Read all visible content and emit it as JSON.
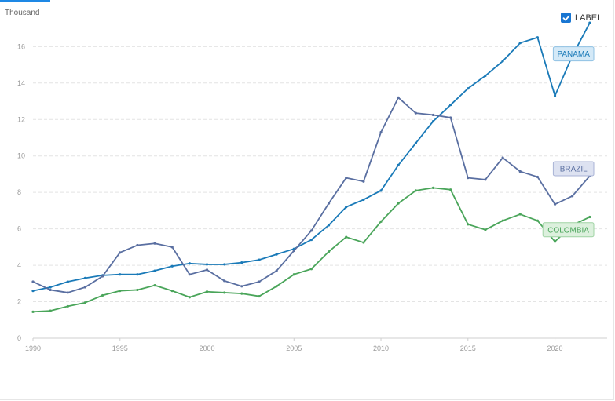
{
  "header": {
    "unit_label": "Thousand",
    "label_toggle": "LABEL",
    "label_checked": true
  },
  "chart_data": {
    "type": "line",
    "x": [
      1990,
      1991,
      1992,
      1993,
      1994,
      1995,
      1996,
      1997,
      1998,
      1999,
      2000,
      2001,
      2002,
      2003,
      2004,
      2005,
      2006,
      2007,
      2008,
      2009,
      2010,
      2011,
      2012,
      2013,
      2014,
      2015,
      2016,
      2017,
      2018,
      2019,
      2020,
      2021,
      2022
    ],
    "xticks": [
      1990,
      1995,
      2000,
      2005,
      2010,
      2015,
      2020
    ],
    "xlim": [
      1990,
      2023
    ],
    "yticks": [
      0,
      2,
      4,
      6,
      8,
      10,
      12,
      14,
      16
    ],
    "ylim": [
      0,
      17.5
    ],
    "ylabel": "Thousand",
    "grid": true,
    "series": [
      {
        "name": "PANAMA",
        "color": "#1a7ab8",
        "label_bg": "#d4e9f7",
        "label_border": "#8fc1e3",
        "values": [
          2.6,
          2.8,
          3.1,
          3.3,
          3.45,
          3.5,
          3.5,
          3.7,
          3.95,
          4.1,
          4.05,
          4.05,
          4.15,
          4.3,
          4.6,
          4.9,
          5.4,
          6.2,
          7.2,
          7.6,
          8.1,
          9.5,
          10.7,
          11.9,
          12.8,
          13.7,
          14.4,
          15.2,
          16.2,
          16.5,
          13.3,
          15.5,
          17.3
        ]
      },
      {
        "name": "BRAZIL",
        "color": "#5a6fa1",
        "label_bg": "#dde2f1",
        "label_border": "#a9b3d6",
        "values": [
          3.1,
          2.65,
          2.5,
          2.8,
          3.4,
          4.7,
          5.1,
          5.2,
          5.0,
          3.5,
          3.75,
          3.15,
          2.85,
          3.1,
          3.7,
          4.8,
          5.9,
          7.4,
          8.8,
          8.6,
          11.3,
          13.2,
          12.35,
          12.25,
          12.1,
          8.8,
          8.7,
          9.9,
          9.15,
          8.85,
          7.35,
          7.8,
          8.9
        ]
      },
      {
        "name": "COLOMBIA",
        "color": "#4aa55a",
        "label_bg": "#dcf0dd",
        "label_border": "#9fd3a4",
        "values": [
          1.45,
          1.5,
          1.75,
          1.95,
          2.35,
          2.6,
          2.65,
          2.9,
          2.6,
          2.25,
          2.55,
          2.5,
          2.45,
          2.3,
          2.85,
          3.5,
          3.8,
          4.75,
          5.55,
          5.25,
          6.4,
          7.4,
          8.1,
          8.25,
          8.15,
          6.25,
          5.95,
          6.45,
          6.8,
          6.45,
          5.3,
          6.2,
          6.65
        ]
      }
    ]
  }
}
